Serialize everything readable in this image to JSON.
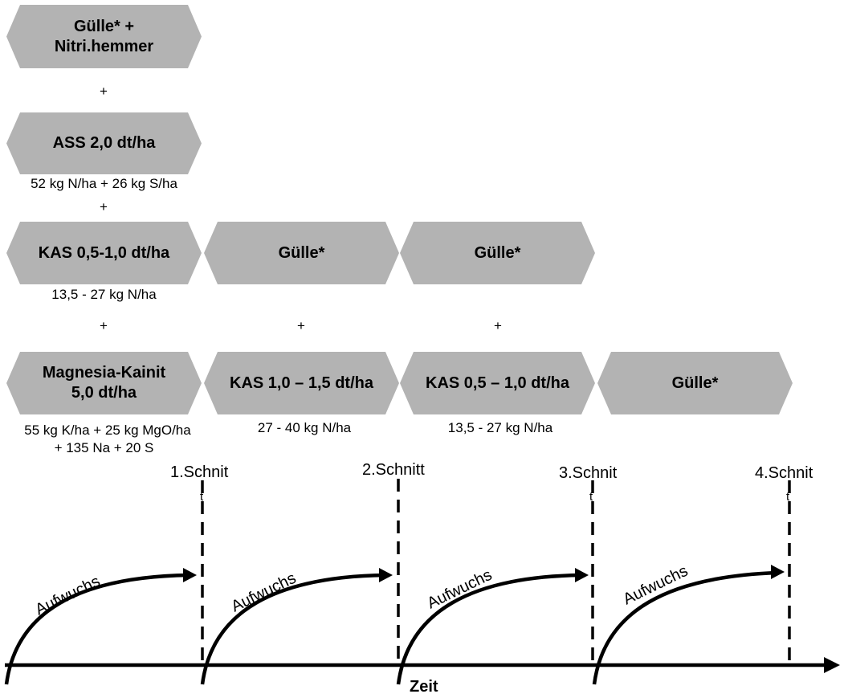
{
  "col1": {
    "box1_line1": "Gülle* +",
    "box1_line2": "Nitri.hemmer",
    "plus1": "+",
    "box2": "ASS 2,0 dt/ha",
    "box2_sub": "52 kg N/ha + 26 kg S/ha",
    "plus2": "+",
    "box3": "KAS 0,5-1,0 dt/ha",
    "box3_sub": "13,5 - 27 kg N/ha",
    "plus3": "+",
    "box4_line1": "Magnesia-Kainit",
    "box4_line2": "5,0 dt/ha",
    "box4_sub1": "55 kg K/ha + 25 kg MgO/ha",
    "box4_sub2": "+ 135 Na + 20 S"
  },
  "col2": {
    "box1": "Gülle*",
    "plus": "+",
    "box2": "KAS 1,0 – 1,5 dt/ha",
    "box2_sub": "27 - 40 kg N/ha"
  },
  "col3": {
    "box1": "Gülle*",
    "plus": "+",
    "box2": "KAS 0,5 – 1,0 dt/ha",
    "box2_sub": "13,5 - 27 kg N/ha"
  },
  "col4": {
    "box1": "Gülle*"
  },
  "cuts": [
    "1.Schnit",
    "2.Schnitt",
    "3.Schnit",
    "4.Schnit"
  ],
  "cut_marks": [
    "t",
    "t",
    "t"
  ],
  "growth_label": "Aufwuchs",
  "axis_label": "Zeit"
}
